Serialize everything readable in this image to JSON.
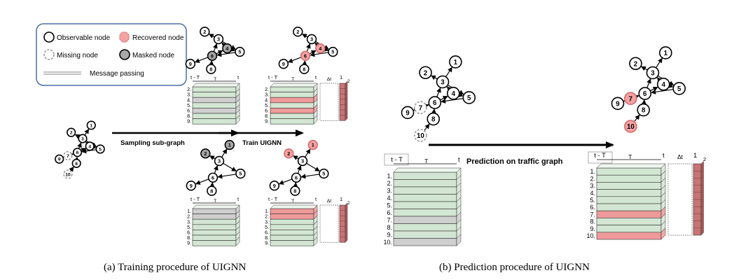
{
  "legend": {
    "observable": "Observable node",
    "recovered": "Recovered node",
    "missing": "Missing node",
    "masked": "Masked node",
    "message": "Message passing"
  },
  "arrows": {
    "sampling": "Sampling sub-graph",
    "train": "Train UIGNN",
    "prediction": "Prediction on traffic graph"
  },
  "captions": {
    "a": "(a) Training procedure of UIGNN",
    "b": "(b) Prediction procedure of UIGNN"
  },
  "axis": {
    "start": "t - T",
    "mid": "T",
    "end": "t",
    "delta": "Δt",
    "one": "1",
    "two": "2"
  },
  "node_ids": [
    "1",
    "2",
    "3",
    "4",
    "5",
    "6",
    "7",
    "8",
    "9",
    "10"
  ],
  "matrix_rows": {
    "sub_top": [
      "2",
      "3",
      "4",
      "5",
      "6",
      "8",
      "9"
    ],
    "sub_bottom": [
      "1",
      "2",
      "3",
      "5",
      "6",
      "8",
      "9"
    ],
    "full": [
      "1",
      "2",
      "3",
      "4",
      "5",
      "6",
      "7",
      "8",
      "9",
      "10"
    ]
  },
  "colors": {
    "observable_fill": "#ffffff",
    "recovered_fill": "#f4a3a3",
    "masked_fill": "#a8a8a8",
    "matrix_green": "#d3e6d3",
    "matrix_gray": "#cfcfcf",
    "matrix_red": "#ef9a9a",
    "output_column": "#c97474"
  }
}
